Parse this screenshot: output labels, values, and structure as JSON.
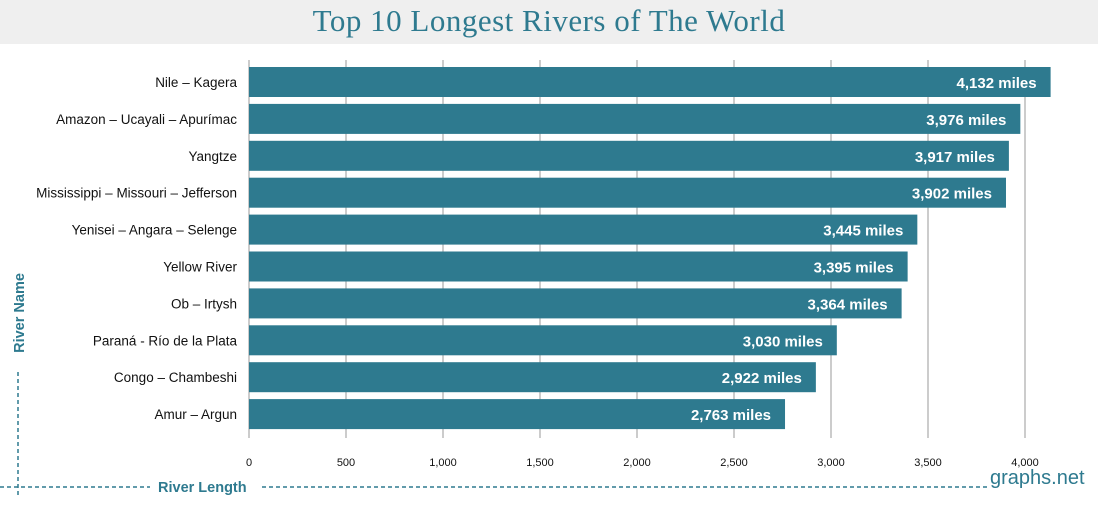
{
  "title": "Top 10 Longest Rivers of The World",
  "watermark": "graphs.net",
  "colors": {
    "bar": "#2e7a8f",
    "title": "#2e7a8f",
    "grid": "#999999"
  },
  "chart_data": {
    "type": "bar",
    "orientation": "horizontal",
    "title": "Top 10 Longest Rivers of The World",
    "xlabel": "River Length",
    "ylabel": "River Name",
    "xlim": [
      0,
      4000
    ],
    "xticks": [
      0,
      500,
      1000,
      1500,
      2000,
      2500,
      3000,
      3500,
      4000
    ],
    "xtick_labels": [
      "0",
      "500",
      "1,000",
      "1,500",
      "2,000",
      "2,500",
      "3,000",
      "3,500",
      "4,000"
    ],
    "grid": "vertical",
    "categories": [
      "Nile – Kagera",
      "Amazon – Ucayali – Apurímac",
      "Yangtze",
      "Mississippi – Missouri – Jefferson",
      "Yenisei – Angara – Selenge",
      "Yellow River",
      "Ob – Irtysh",
      "Paraná - Río de la Plata",
      "Congo – Chambeshi",
      "Amur – Argun"
    ],
    "values": [
      4132,
      3976,
      3917,
      3902,
      3445,
      3395,
      3364,
      3030,
      2922,
      2763
    ],
    "data_labels": [
      "4,132 miles",
      "3,976 miles",
      "3,917 miles",
      "3,902 miles",
      "3,445 miles",
      "3,395 miles",
      "3,364 miles",
      "3,030 miles",
      "2,922 miles",
      "2,763 miles"
    ]
  }
}
